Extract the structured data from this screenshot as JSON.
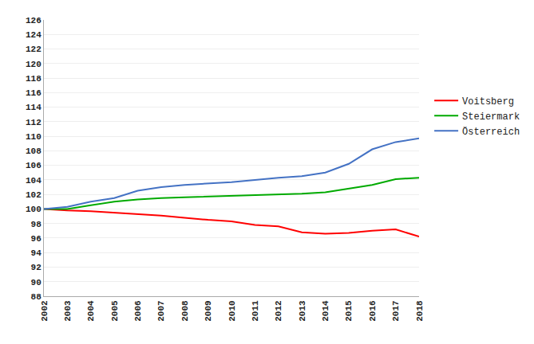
{
  "chart_data": {
    "type": "line",
    "x": [
      2002,
      2003,
      2004,
      2005,
      2006,
      2007,
      2008,
      2009,
      2010,
      2011,
      2012,
      2013,
      2014,
      2015,
      2016,
      2017,
      2018
    ],
    "series": [
      {
        "name": "Voitsberg",
        "color": "#ff0000",
        "values": [
          100,
          99.8,
          99.7,
          99.5,
          99.3,
          99.1,
          98.8,
          98.5,
          98.3,
          97.8,
          97.6,
          96.8,
          96.6,
          96.7,
          97.0,
          97.2,
          96.2
        ]
      },
      {
        "name": "Steiermark",
        "color": "#00aa00",
        "values": [
          100,
          100.0,
          100.5,
          101.0,
          101.3,
          101.5,
          101.6,
          101.7,
          101.8,
          101.9,
          102.0,
          102.1,
          102.3,
          102.8,
          103.3,
          104.1,
          104.3
        ]
      },
      {
        "name": "Österreich",
        "color": "#4472c4",
        "values": [
          100,
          100.3,
          101.0,
          101.5,
          102.5,
          103.0,
          103.3,
          103.5,
          103.7,
          104.0,
          104.3,
          104.5,
          105.0,
          106.2,
          108.2,
          109.2,
          109.7
        ]
      }
    ],
    "xlim": [
      2002,
      2018
    ],
    "xticks": [
      2002,
      2003,
      2004,
      2005,
      2006,
      2007,
      2008,
      2009,
      2010,
      2011,
      2012,
      2013,
      2014,
      2015,
      2016,
      2017,
      2018
    ],
    "ylim": [
      88,
      126
    ],
    "yticks": [
      88,
      90,
      92,
      94,
      96,
      98,
      100,
      102,
      104,
      106,
      108,
      110,
      112,
      114,
      116,
      118,
      120,
      122,
      124,
      126
    ],
    "grid": "y",
    "legend": "right"
  }
}
